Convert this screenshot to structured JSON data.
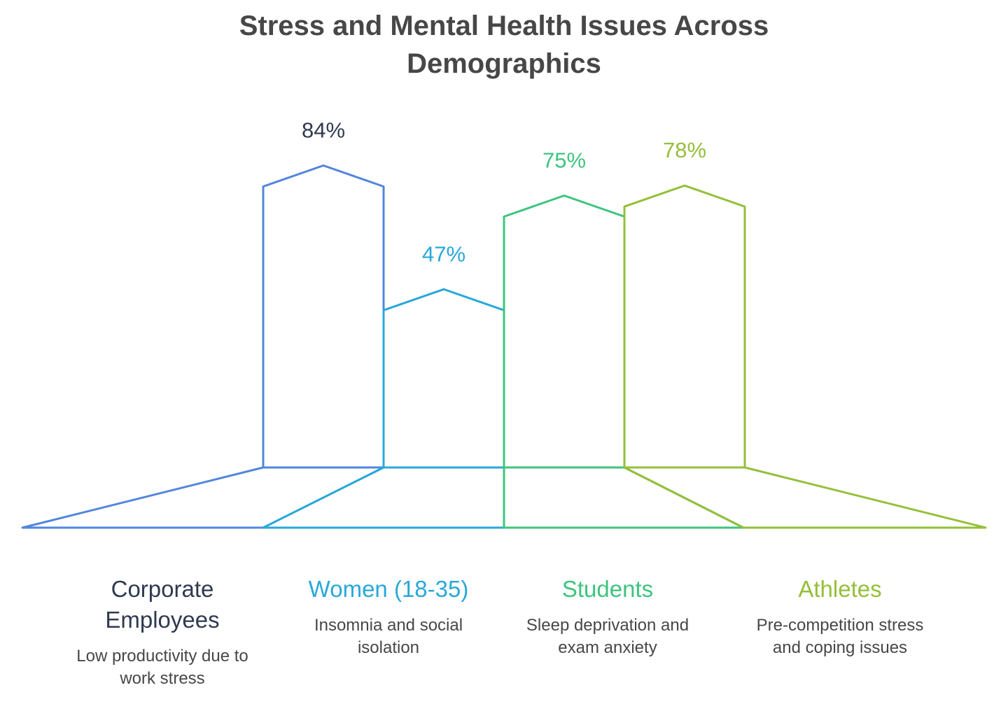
{
  "title_line1": "Stress and Mental Health Issues Across",
  "title_line2": "Demographics",
  "chart_data": {
    "type": "bar",
    "title": "Stress and Mental Health Issues Across Demographics",
    "categories": [
      "Corporate Employees",
      "Women (18-35)",
      "Students",
      "Athletes"
    ],
    "values": [
      84,
      47,
      75,
      78
    ],
    "value_labels": [
      "84%",
      "47%",
      "75%",
      "78%"
    ],
    "colors": [
      "#5286dc",
      "#2aa8d8",
      "#3ec47e",
      "#95bf3a"
    ],
    "label_colors": [
      "#2f3a4f",
      "#2aa8d8",
      "#3ec47e",
      "#95bf3a"
    ],
    "descriptions": [
      [
        "Low productivity due to",
        "work stress"
      ],
      [
        "Insomnia and social",
        "isolation"
      ],
      [
        "Sleep deprivation and",
        "exam anxiety"
      ],
      [
        "Pre-competition stress",
        "and coping issues"
      ]
    ],
    "name_lines": [
      [
        "Corporate",
        "Employees"
      ],
      [
        "Women (18-35)"
      ],
      [
        "Students"
      ],
      [
        "Athletes"
      ]
    ]
  }
}
